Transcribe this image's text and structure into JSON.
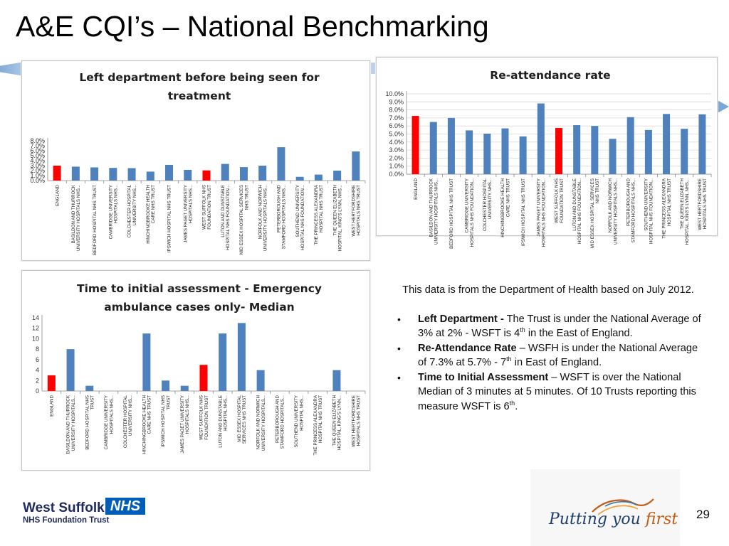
{
  "slide": {
    "title": "A&E CQI’s – National Benchmarking",
    "page_number": "29"
  },
  "colors": {
    "bar_default": "#4f81bd",
    "bar_highlight": "#ff0000",
    "nhs_blue": "#005eb8"
  },
  "chart_data": [
    {
      "id": "left-department",
      "type": "bar",
      "title_lines": [
        "Left department before being seen for",
        "treatment"
      ],
      "categories": [
        [
          "ENGLAND"
        ],
        [
          "BASILDON AND THURROCK",
          "UNIVERSITY HOSPITALS NHS..."
        ],
        [
          "BEDFORD HOSPITAL NHS TRUST"
        ],
        [
          "CAMBRIDGE UNIVERSITY",
          "HOSPITALS NHS..."
        ],
        [
          "COLCHESTER HOSPITAL",
          "UNIVERSITY NHS..."
        ],
        [
          "HINCHINGBROOKE HEALTH",
          "CARE NHS TRUST"
        ],
        [
          "IPSWICH HOSPITAL NHS TRUST"
        ],
        [
          "JAMES PAGET UNIVERSITY",
          "HOSPITALS NHS..."
        ],
        [
          "WEST SUFFOLK NHS",
          "FOUNDATION TRUST"
        ],
        [
          "LUTON AND DUNSTABLE",
          "HOSPITAL NHS FOUNDATION..."
        ],
        [
          "MID ESSEX HOSPITAL SERVICES",
          "NHS TRUST"
        ],
        [
          "NORFOLK AND NORWICH",
          "UNIVERSITY HOSPITALS NHS..."
        ],
        [
          "PETERBOROUGH AND",
          "STAMFORD HOSPITALS NHS..."
        ],
        [
          "SOUTHEND UNIVERSITY",
          "HOSPITAL NHS FOUNDATION..."
        ],
        [
          "THE PRINCESS ALEXANDRA",
          "HOSPITAL NHS TRUST"
        ],
        [
          "THE QUEEN ELIZABETH",
          "HOSPITAL, KING'S LYNN, NHS..."
        ],
        [
          "WEST HERTFORDSHIRE",
          "HOSPITALS NHS TRUST"
        ]
      ],
      "values": [
        3.0,
        2.8,
        2.65,
        2.55,
        2.5,
        1.8,
        3.15,
        2.15,
        2.05,
        3.35,
        2.7,
        3.0,
        6.7,
        0.75,
        1.2,
        2.0,
        5.85
      ],
      "highlight_indices": [
        0,
        8
      ],
      "yticks": [
        "0.0%",
        "1.0%",
        "2.0%",
        "3.0%",
        "4.0%",
        "5.0%",
        "6.0%",
        "7.0%",
        "8.0%"
      ],
      "ylim": [
        0,
        8
      ],
      "grid": false
    },
    {
      "id": "re-attendance",
      "type": "bar",
      "title_lines": [
        "Re-attendance rate"
      ],
      "categories": [
        [
          "ENGLAND"
        ],
        [
          "BASILDON AND THURROCK",
          "UNIVERSITY HOSPITALS NHS..."
        ],
        [
          "BEDFORD HOSPITAL NHS TRUST"
        ],
        [
          "CAMBRIDGE UNIVERSITY",
          "HOSPITALS NHS FOUNDATION..."
        ],
        [
          "COLCHESTER HOSPITAL",
          "UNIVERSITY NHS..."
        ],
        [
          "HINCHINGBROOKE HEALTH",
          "CARE NHS TRUST"
        ],
        [
          "IPSWICH HOSPITAL NHS TRUST"
        ],
        [
          "JAMES PAGET UNIVERSITY",
          "HOSPITALS NHS FOUNDATION..."
        ],
        [
          "WEST SUFFOLK NHS",
          "FOUNDATION TRUST"
        ],
        [
          "LUTON AND DUNSTABLE",
          "HOSPITAL NHS FOUNDATION..."
        ],
        [
          "MID ESSEX HOSPITAL SERVICES",
          "NHS TRUST"
        ],
        [
          "NORFOLK AND NORWICH",
          "UNIVERSITY HOSPITALS NHS..."
        ],
        [
          "PETERBOROUGH AND",
          "STAMFORD HOSPITALS NHS..."
        ],
        [
          "SOUTHEND UNIVERSITY",
          "HOSPITAL NHS FOUNDATION..."
        ],
        [
          "THE PRINCESS ALEXANDRA",
          "HOSPITAL NHS TRUST"
        ],
        [
          "THE QUEEN ELIZABETH",
          "HOSPITAL, KING'S LYNN, NHS..."
        ],
        [
          "WEST HERTFORDSHIRE",
          "HOSPITALS NHS TRUST"
        ]
      ],
      "values": [
        7.25,
        6.5,
        7.0,
        5.45,
        5.05,
        5.7,
        4.7,
        8.8,
        5.75,
        6.1,
        6.0,
        4.4,
        7.1,
        5.5,
        7.5,
        5.65,
        7.45
      ],
      "highlight_indices": [
        0,
        8
      ],
      "yticks": [
        "0.0%",
        "1.0%",
        "2.0%",
        "3.0%",
        "4.0%",
        "5.0%",
        "6.0%",
        "7.0%",
        "8.0%",
        "9.0%",
        "10.0%"
      ],
      "ylim": [
        0,
        10
      ],
      "grid": true
    },
    {
      "id": "time-to-initial-assessment",
      "type": "bar",
      "title_lines": [
        "Time to initial assessment - Emergency",
        "ambulance cases only- Median"
      ],
      "categories": [
        [
          "ENGLAND"
        ],
        [
          "BASILDON AND THURROCK",
          "UNIVERSITY HOSPITALS..."
        ],
        [
          "BEDFORD HOSPITAL NHS",
          "TRUST"
        ],
        [
          "CAMBRIDGE UNIVERSITY",
          "HOSPITALS NHS..."
        ],
        [
          "COLCHESTER HOSPITAL",
          "UNIVERSITY NHS..."
        ],
        [
          "HINCHINGBROOKE HEALTH",
          "CARE NHS TRUST"
        ],
        [
          "IPSWICH HOSPITAL NHS",
          "TRUST"
        ],
        [
          "JAMES PAGET UNIVERSITY",
          "HOSPITALS NHS..."
        ],
        [
          "WEST SUFFOLK NHS",
          "FOUNDATION TRUST"
        ],
        [
          "LUTON AND DUNSTABLE",
          "HOSPITAL NHS..."
        ],
        [
          "MID ESSEX HOSPITAL",
          "SERVICES NHS TRUST"
        ],
        [
          "NORFOLK AND NORWICH",
          "UNIVERSITY HOSPITALS..."
        ],
        [
          "PETERBOROUGH AND",
          "STAMFORD HOSPITALS..."
        ],
        [
          "SOUTHEND UNIVERSITY",
          "HOSPITAL NHS..."
        ],
        [
          "THE PRINCESS ALEXANDRA",
          "HOSPITAL NHS TRUST"
        ],
        [
          "THE QUEEN ELIZABETH",
          "HOSPITAL, KING'S LYNN..."
        ],
        [
          "WEST HERTFORDSHIRE",
          "HOSPITALS NHS TRUST"
        ]
      ],
      "values": [
        3,
        8,
        1,
        0,
        0,
        11,
        2,
        1,
        5,
        11,
        13,
        4,
        0,
        0,
        0,
        4,
        0
      ],
      "highlight_indices": [
        0,
        8
      ],
      "yticks": [
        "0",
        "2",
        "4",
        "6",
        "8",
        "10",
        "12",
        "14"
      ],
      "ylim": [
        0,
        14
      ],
      "grid": false
    }
  ],
  "notes": {
    "intro": "This data is from the Department of Health based on July 2012.",
    "bullets": [
      {
        "bold": "Left Department -",
        "text_before_sup": "  The Trust is under the National Average of 3% at 2% - WSFT is 4",
        "sup": "th",
        "text_after_sup": "  in the East of England."
      },
      {
        "bold": "Re-Attendance Rate",
        "text_before_sup": " – WSFH is under the National Average of 7.3% at 5.7% - 7",
        "sup": "th",
        "text_after_sup": " in East of England."
      },
      {
        "bold": "Time to Initial Assessment",
        "text_before_sup": " – WSFT is over the National Median of 3 minutes at 5 minutes.  Of 10 Trusts reporting this measure WSFT is 6",
        "sup": "th",
        "text_after_sup": "."
      }
    ]
  },
  "logos": {
    "west_suffolk": {
      "name": "West Suffolk",
      "nhs": "NHS",
      "trust": "NHS Foundation Trust"
    },
    "putting_you_first": {
      "text": "Putting you ",
      "emphasis": "first"
    }
  }
}
